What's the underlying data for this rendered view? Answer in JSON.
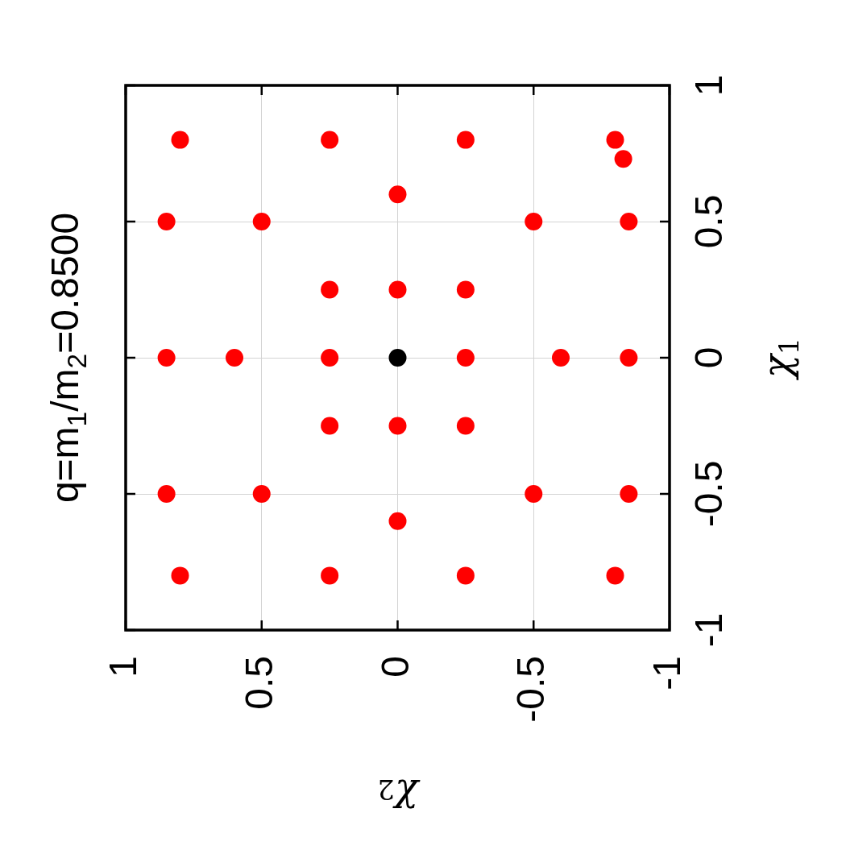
{
  "chart_data": {
    "type": "scatter",
    "title": "q=m$_{1}$/m$_{2}$=0.8500",
    "xlabel": "χ$_{2}$",
    "ylabel": "χ$_{1}$",
    "xlim": [
      1,
      -1
    ],
    "ylim": [
      -1,
      1
    ],
    "xticks": [
      1,
      0.5,
      0,
      -0.5,
      -1
    ],
    "yticks": [
      -1,
      -0.5,
      0,
      0.5,
      1
    ],
    "grid": true,
    "marker": "circle",
    "series": [
      {
        "color": "#ff0000",
        "x": [
          0.8,
          0.25,
          -0.25,
          -0.8,
          -0.83,
          0,
          0.85,
          0.5,
          -0.5,
          -0.85,
          0.25,
          0,
          -0.25,
          0.85,
          0.6,
          0.25,
          -0.25,
          -0.6,
          -0.85,
          0.25,
          0,
          -0.25,
          0.85,
          0.5,
          -0.5,
          -0.85,
          0,
          0.8,
          0.25,
          -0.25,
          -0.8
        ],
        "values": [
          0.8,
          0.8,
          0.8,
          0.8,
          0.73,
          0.6,
          0.5,
          0.5,
          0.5,
          0.5,
          0.25,
          0.25,
          0.25,
          0,
          0,
          0,
          0,
          0,
          0,
          -0.25,
          -0.25,
          -0.25,
          -0.5,
          -0.5,
          -0.5,
          -0.5,
          -0.6,
          -0.8,
          -0.8,
          -0.8,
          -0.8
        ]
      },
      {
        "color": "#000000",
        "x": [
          0
        ],
        "values": [
          0
        ]
      }
    ]
  }
}
